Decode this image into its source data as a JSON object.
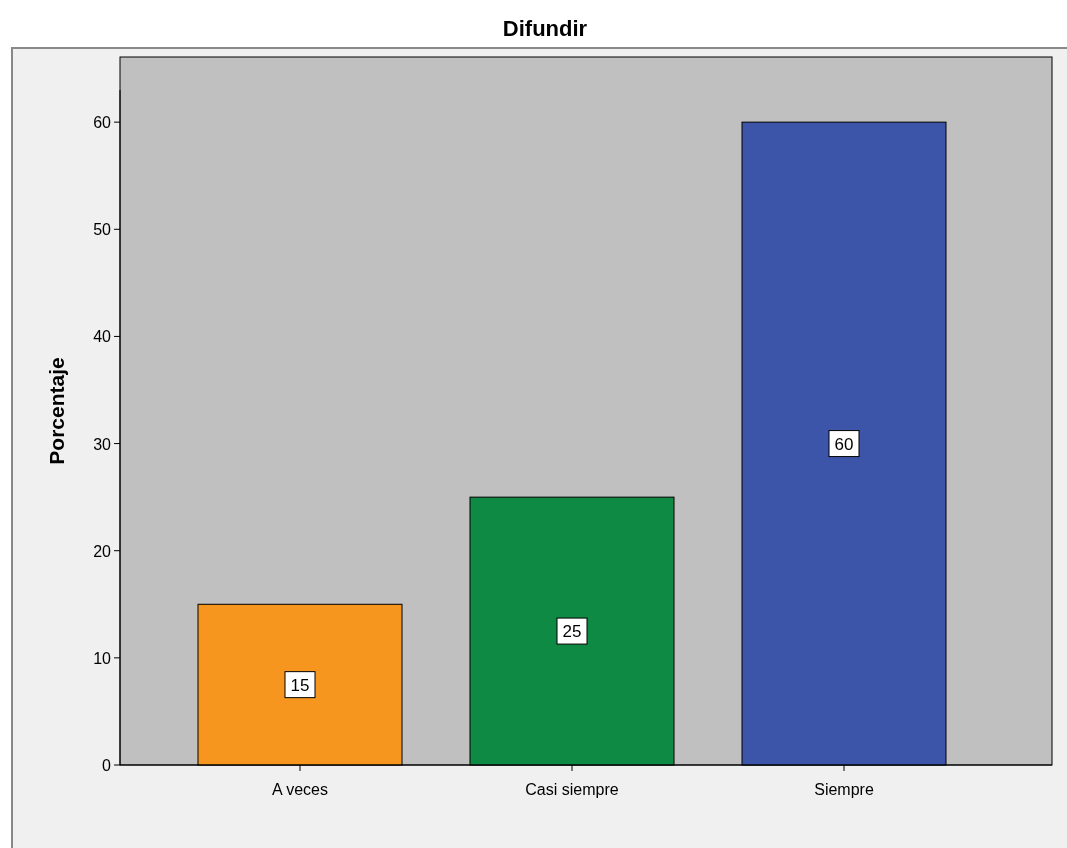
{
  "chart_data": {
    "type": "bar",
    "title": "Difundir",
    "ylabel": "Porcentaje",
    "categories": [
      "A veces",
      "Casi siempre",
      "Siempre"
    ],
    "values": [
      15,
      25,
      60
    ],
    "colors": [
      "#f7961e",
      "#0f8a45",
      "#3c55a8"
    ],
    "ylim": [
      0,
      63
    ],
    "yticks": [
      0,
      10,
      20,
      30,
      40,
      50,
      60
    ],
    "data_labels": true
  }
}
